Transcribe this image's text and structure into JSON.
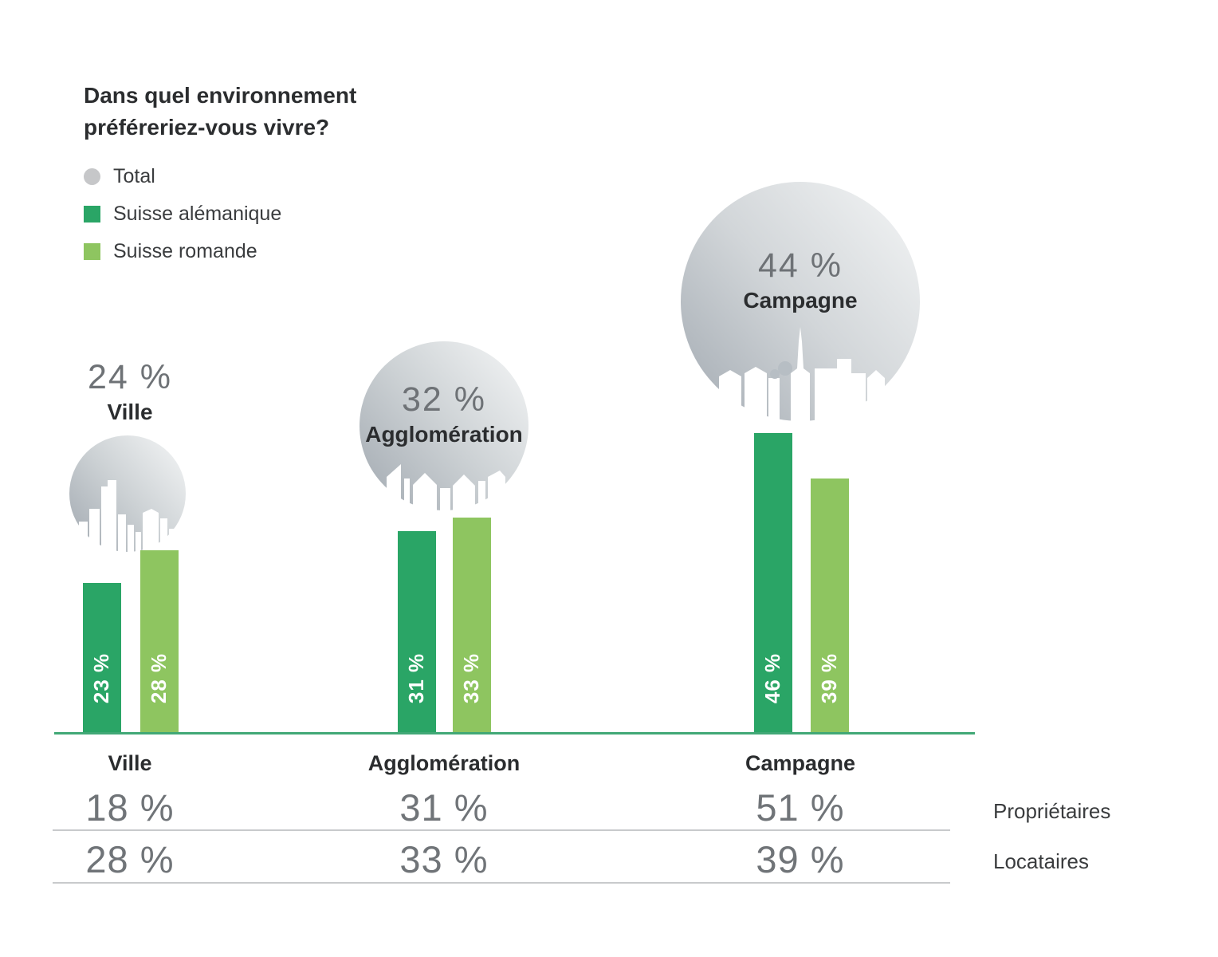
{
  "title": {
    "line1": "Dans quel environnement",
    "line2": "préféreriez-vous vivre?"
  },
  "legend": [
    {
      "label": "Total",
      "color": "#c6c7c9",
      "shape": "circle"
    },
    {
      "label": "Suisse alémanique",
      "color": "#2aa566",
      "shape": "square"
    },
    {
      "label": "Suisse romande",
      "color": "#8ec560",
      "shape": "square"
    }
  ],
  "groups": [
    {
      "name": "Ville",
      "total_label": "24 %",
      "total": 24,
      "bars": [
        {
          "label": "23 %",
          "value": 23
        },
        {
          "label": "28 %",
          "value": 28
        }
      ]
    },
    {
      "name": "Agglomération",
      "total_label": "32 %",
      "total": 32,
      "bars": [
        {
          "label": "31 %",
          "value": 31
        },
        {
          "label": "33 %",
          "value": 33
        }
      ]
    },
    {
      "name": "Campagne",
      "total_label": "44 %",
      "total": 44,
      "bars": [
        {
          "label": "46 %",
          "value": 46
        },
        {
          "label": "39 %",
          "value": 39
        }
      ]
    }
  ],
  "axis_labels": [
    "Ville",
    "Agglomération",
    "Campagne"
  ],
  "table": {
    "rows": [
      {
        "label": "Propriétaires",
        "values": [
          "18 %",
          "31 %",
          "51 %"
        ]
      },
      {
        "label": "Locataires",
        "values": [
          "28 %",
          "33 %",
          "39 %"
        ]
      }
    ]
  },
  "colors": {
    "dark_green": "#2aa566",
    "light_green": "#8ec560",
    "axis_green": "#41a876",
    "total_gray": "#c6c7c9",
    "text_dark": "#2b2d2f",
    "text_gray": "#707478"
  },
  "chart_data": {
    "type": "bar",
    "title": "Dans quel environnement préféreriez-vous vivre?",
    "categories": [
      "Ville",
      "Agglomération",
      "Campagne"
    ],
    "series": [
      {
        "name": "Total",
        "values": [
          24,
          32,
          44
        ],
        "color": "#c6c7c9",
        "render": "bubble-with-skyline-icon"
      },
      {
        "name": "Suisse alémanique",
        "values": [
          23,
          31,
          46
        ],
        "color": "#2aa566",
        "render": "bar"
      },
      {
        "name": "Suisse romande",
        "values": [
          28,
          33,
          39
        ],
        "color": "#8ec560",
        "render": "bar"
      }
    ],
    "unit": "%",
    "ylim": [
      0,
      50
    ],
    "grid": false,
    "legend_position": "top-left",
    "bar_value_labels": "inside-bottom-rotated-white",
    "annotation_table": {
      "rows": [
        {
          "label": "Propriétaires",
          "values": [
            18,
            31,
            51
          ]
        },
        {
          "label": "Locataires",
          "values": [
            28,
            33,
            39
          ]
        }
      ]
    }
  }
}
